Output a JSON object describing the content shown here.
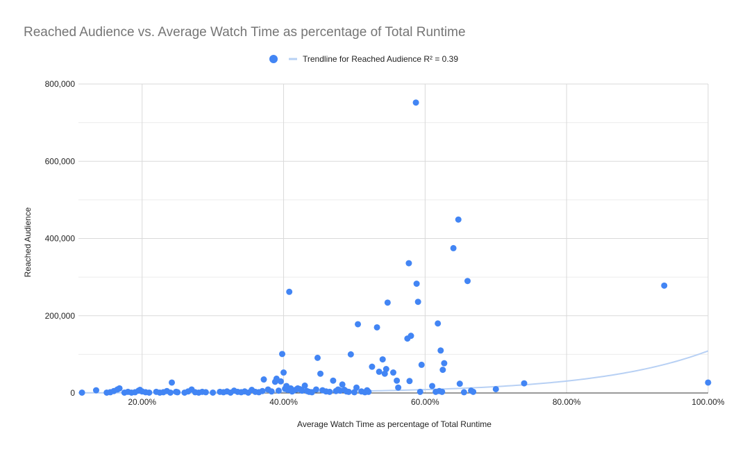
{
  "chart_data": {
    "type": "scatter",
    "title": "Reached Audience vs. Average Watch Time as percentage of Total Runtime",
    "xlabel": "Average Watch Time as percentage of Total Runtime",
    "ylabel": "Reached Audience",
    "xlim": [
      0.11,
      1.0
    ],
    "ylim": [
      0,
      800000
    ],
    "xticks": [
      0.2,
      0.4,
      0.6,
      0.8,
      1.0
    ],
    "xtick_labels": [
      "20.00%",
      "40.00%",
      "60.00%",
      "80.00%",
      "100.00%"
    ],
    "yticks": [
      0,
      200000,
      400000,
      600000,
      800000
    ],
    "ytick_labels": [
      "0",
      "200,000",
      "400,000",
      "600,000",
      "800,000"
    ],
    "grid": true,
    "legend_position": "top",
    "series_name": "Reached Audience",
    "trendline_label": "Trendline for Reached Audience R² = 0.39",
    "trendline": {
      "type": "exponential",
      "a": 200,
      "b": 6.3
    },
    "colors": {
      "points": "#4285f4",
      "trendline": "#b7d0f4",
      "grid": "#d9d9d9",
      "baseline": "#333333"
    },
    "points": [
      [
        0.115,
        1000
      ],
      [
        0.135,
        7000
      ],
      [
        0.15,
        1000
      ],
      [
        0.155,
        2000
      ],
      [
        0.16,
        5000
      ],
      [
        0.165,
        9000
      ],
      [
        0.168,
        12000
      ],
      [
        0.175,
        1000
      ],
      [
        0.18,
        3000
      ],
      [
        0.185,
        1000
      ],
      [
        0.19,
        2000
      ],
      [
        0.195,
        6000
      ],
      [
        0.197,
        8000
      ],
      [
        0.2,
        4000
      ],
      [
        0.205,
        2000
      ],
      [
        0.21,
        1000
      ],
      [
        0.22,
        3000
      ],
      [
        0.225,
        1000
      ],
      [
        0.23,
        2000
      ],
      [
        0.235,
        5000
      ],
      [
        0.24,
        1000
      ],
      [
        0.242,
        27000
      ],
      [
        0.248,
        3000
      ],
      [
        0.25,
        2000
      ],
      [
        0.26,
        1000
      ],
      [
        0.265,
        4000
      ],
      [
        0.27,
        9000
      ],
      [
        0.275,
        2000
      ],
      [
        0.28,
        1000
      ],
      [
        0.285,
        3000
      ],
      [
        0.29,
        2000
      ],
      [
        0.3,
        1000
      ],
      [
        0.31,
        3000
      ],
      [
        0.315,
        2000
      ],
      [
        0.32,
        4000
      ],
      [
        0.325,
        1000
      ],
      [
        0.33,
        6000
      ],
      [
        0.335,
        3000
      ],
      [
        0.34,
        2000
      ],
      [
        0.345,
        4000
      ],
      [
        0.35,
        1000
      ],
      [
        0.355,
        8000
      ],
      [
        0.36,
        3000
      ],
      [
        0.365,
        2000
      ],
      [
        0.37,
        5000
      ],
      [
        0.372,
        35000
      ],
      [
        0.378,
        9000
      ],
      [
        0.383,
        4000
      ],
      [
        0.388,
        29000
      ],
      [
        0.39,
        37000
      ],
      [
        0.393,
        6000
      ],
      [
        0.396,
        30000
      ],
      [
        0.398,
        101000
      ],
      [
        0.4,
        53000
      ],
      [
        0.402,
        11000
      ],
      [
        0.404,
        18000
      ],
      [
        0.406,
        8000
      ],
      [
        0.408,
        262000
      ],
      [
        0.41,
        12000
      ],
      [
        0.412,
        4000
      ],
      [
        0.415,
        7000
      ],
      [
        0.418,
        9000
      ],
      [
        0.42,
        12000
      ],
      [
        0.423,
        10000
      ],
      [
        0.426,
        6000
      ],
      [
        0.43,
        19000
      ],
      [
        0.433,
        5000
      ],
      [
        0.436,
        3000
      ],
      [
        0.44,
        2000
      ],
      [
        0.446,
        9000
      ],
      [
        0.448,
        91000
      ],
      [
        0.452,
        50000
      ],
      [
        0.455,
        7000
      ],
      [
        0.46,
        4000
      ],
      [
        0.465,
        3000
      ],
      [
        0.47,
        32000
      ],
      [
        0.474,
        5000
      ],
      [
        0.477,
        9000
      ],
      [
        0.48,
        6000
      ],
      [
        0.483,
        22000
      ],
      [
        0.486,
        8000
      ],
      [
        0.489,
        4000
      ],
      [
        0.492,
        3000
      ],
      [
        0.495,
        100000
      ],
      [
        0.5,
        2000
      ],
      [
        0.503,
        14000
      ],
      [
        0.505,
        178000
      ],
      [
        0.51,
        4000
      ],
      [
        0.515,
        2000
      ],
      [
        0.518,
        7000
      ],
      [
        0.52,
        3000
      ],
      [
        0.525,
        68000
      ],
      [
        0.532,
        170000
      ],
      [
        0.535,
        55000
      ],
      [
        0.54,
        87000
      ],
      [
        0.543,
        50000
      ],
      [
        0.545,
        62000
      ],
      [
        0.547,
        234000
      ],
      [
        0.555,
        53000
      ],
      [
        0.56,
        32000
      ],
      [
        0.562,
        14000
      ],
      [
        0.575,
        141000
      ],
      [
        0.577,
        336000
      ],
      [
        0.578,
        31000
      ],
      [
        0.58,
        148000
      ],
      [
        0.587,
        752000
      ],
      [
        0.588,
        283000
      ],
      [
        0.59,
        236000
      ],
      [
        0.593,
        3000
      ],
      [
        0.595,
        73000
      ],
      [
        0.61,
        18000
      ],
      [
        0.615,
        3000
      ],
      [
        0.618,
        180000
      ],
      [
        0.62,
        5000
      ],
      [
        0.622,
        110000
      ],
      [
        0.624,
        3000
      ],
      [
        0.625,
        60000
      ],
      [
        0.627,
        77000
      ],
      [
        0.64,
        375000
      ],
      [
        0.647,
        449000
      ],
      [
        0.649,
        24000
      ],
      [
        0.655,
        2000
      ],
      [
        0.66,
        290000
      ],
      [
        0.665,
        6000
      ],
      [
        0.668,
        3000
      ],
      [
        0.7,
        10000
      ],
      [
        0.74,
        25000
      ],
      [
        0.938,
        278000
      ],
      [
        1.0,
        27000
      ]
    ]
  }
}
